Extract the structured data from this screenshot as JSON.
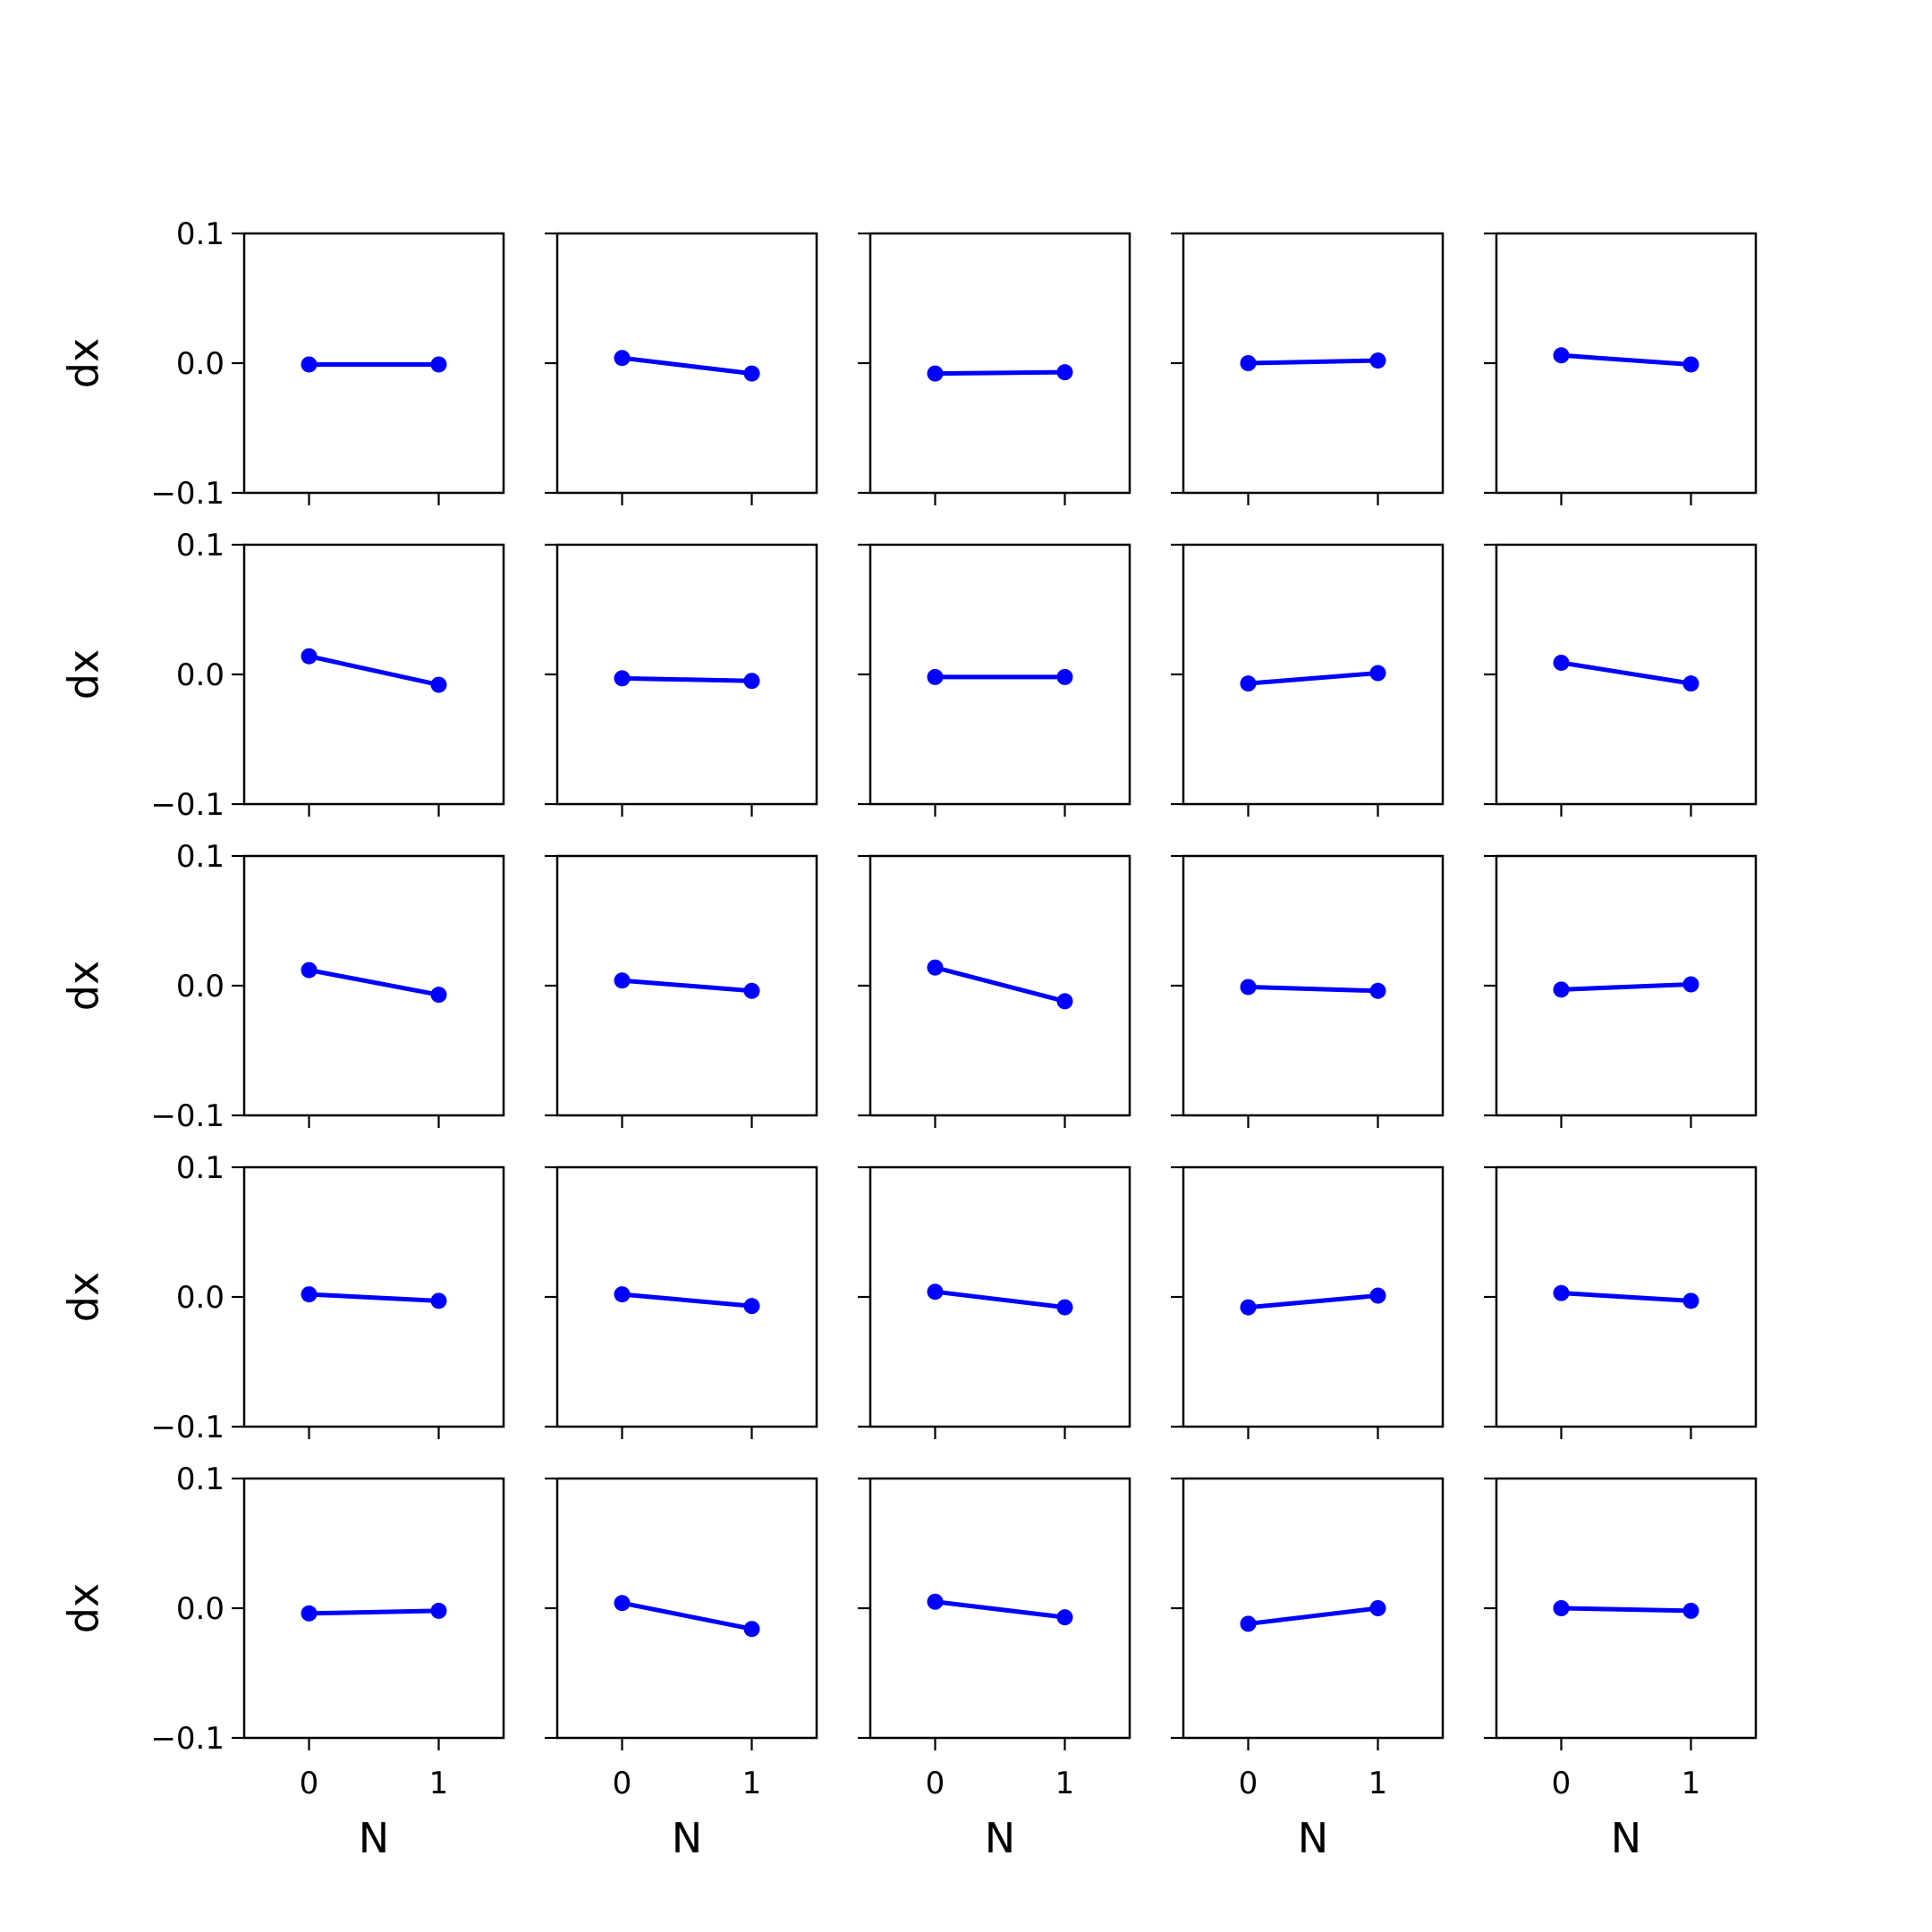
{
  "chart_data": {
    "type": "line",
    "layout": "5x5 grid of line plots",
    "shared_x": true,
    "shared_y": true,
    "xlabel": "N",
    "ylabel": "dx",
    "xticks": [
      0,
      1
    ],
    "xtick_labels": [
      "0",
      "1"
    ],
    "xlim": [
      -0.5,
      1.5
    ],
    "yticks": [
      -0.1,
      0.0,
      0.1
    ],
    "ytick_labels": [
      "−0.1",
      "0.0",
      "0.1"
    ],
    "ylim": [
      -0.1,
      0.1
    ],
    "grid": false,
    "line_color": "#0000ff",
    "marker": "circle",
    "x": [
      0,
      1
    ],
    "panels": [
      {
        "row": 1,
        "col": 1,
        "values": [
          -0.001,
          -0.001
        ]
      },
      {
        "row": 1,
        "col": 2,
        "values": [
          0.004,
          -0.008
        ]
      },
      {
        "row": 1,
        "col": 3,
        "values": [
          -0.008,
          -0.007
        ]
      },
      {
        "row": 1,
        "col": 4,
        "values": [
          0.0,
          0.002
        ]
      },
      {
        "row": 1,
        "col": 5,
        "values": [
          0.006,
          -0.001
        ]
      },
      {
        "row": 2,
        "col": 1,
        "values": [
          0.014,
          -0.008
        ]
      },
      {
        "row": 2,
        "col": 2,
        "values": [
          -0.003,
          -0.005
        ]
      },
      {
        "row": 2,
        "col": 3,
        "values": [
          -0.002,
          -0.002
        ]
      },
      {
        "row": 2,
        "col": 4,
        "values": [
          -0.007,
          0.001
        ]
      },
      {
        "row": 2,
        "col": 5,
        "values": [
          0.009,
          -0.007
        ]
      },
      {
        "row": 3,
        "col": 1,
        "values": [
          0.012,
          -0.007
        ]
      },
      {
        "row": 3,
        "col": 2,
        "values": [
          0.004,
          -0.004
        ]
      },
      {
        "row": 3,
        "col": 3,
        "values": [
          0.014,
          -0.012
        ]
      },
      {
        "row": 3,
        "col": 4,
        "values": [
          -0.001,
          -0.004
        ]
      },
      {
        "row": 3,
        "col": 5,
        "values": [
          -0.003,
          0.001
        ]
      },
      {
        "row": 4,
        "col": 1,
        "values": [
          0.002,
          -0.003
        ]
      },
      {
        "row": 4,
        "col": 2,
        "values": [
          0.002,
          -0.007
        ]
      },
      {
        "row": 4,
        "col": 3,
        "values": [
          0.004,
          -0.008
        ]
      },
      {
        "row": 4,
        "col": 4,
        "values": [
          -0.008,
          0.001
        ]
      },
      {
        "row": 4,
        "col": 5,
        "values": [
          0.003,
          -0.003
        ]
      },
      {
        "row": 5,
        "col": 1,
        "values": [
          -0.004,
          -0.002
        ]
      },
      {
        "row": 5,
        "col": 2,
        "values": [
          0.004,
          -0.016
        ]
      },
      {
        "row": 5,
        "col": 3,
        "values": [
          0.005,
          -0.007
        ]
      },
      {
        "row": 5,
        "col": 4,
        "values": [
          -0.012,
          0.0
        ]
      },
      {
        "row": 5,
        "col": 5,
        "values": [
          0.0,
          -0.002
        ]
      }
    ]
  }
}
